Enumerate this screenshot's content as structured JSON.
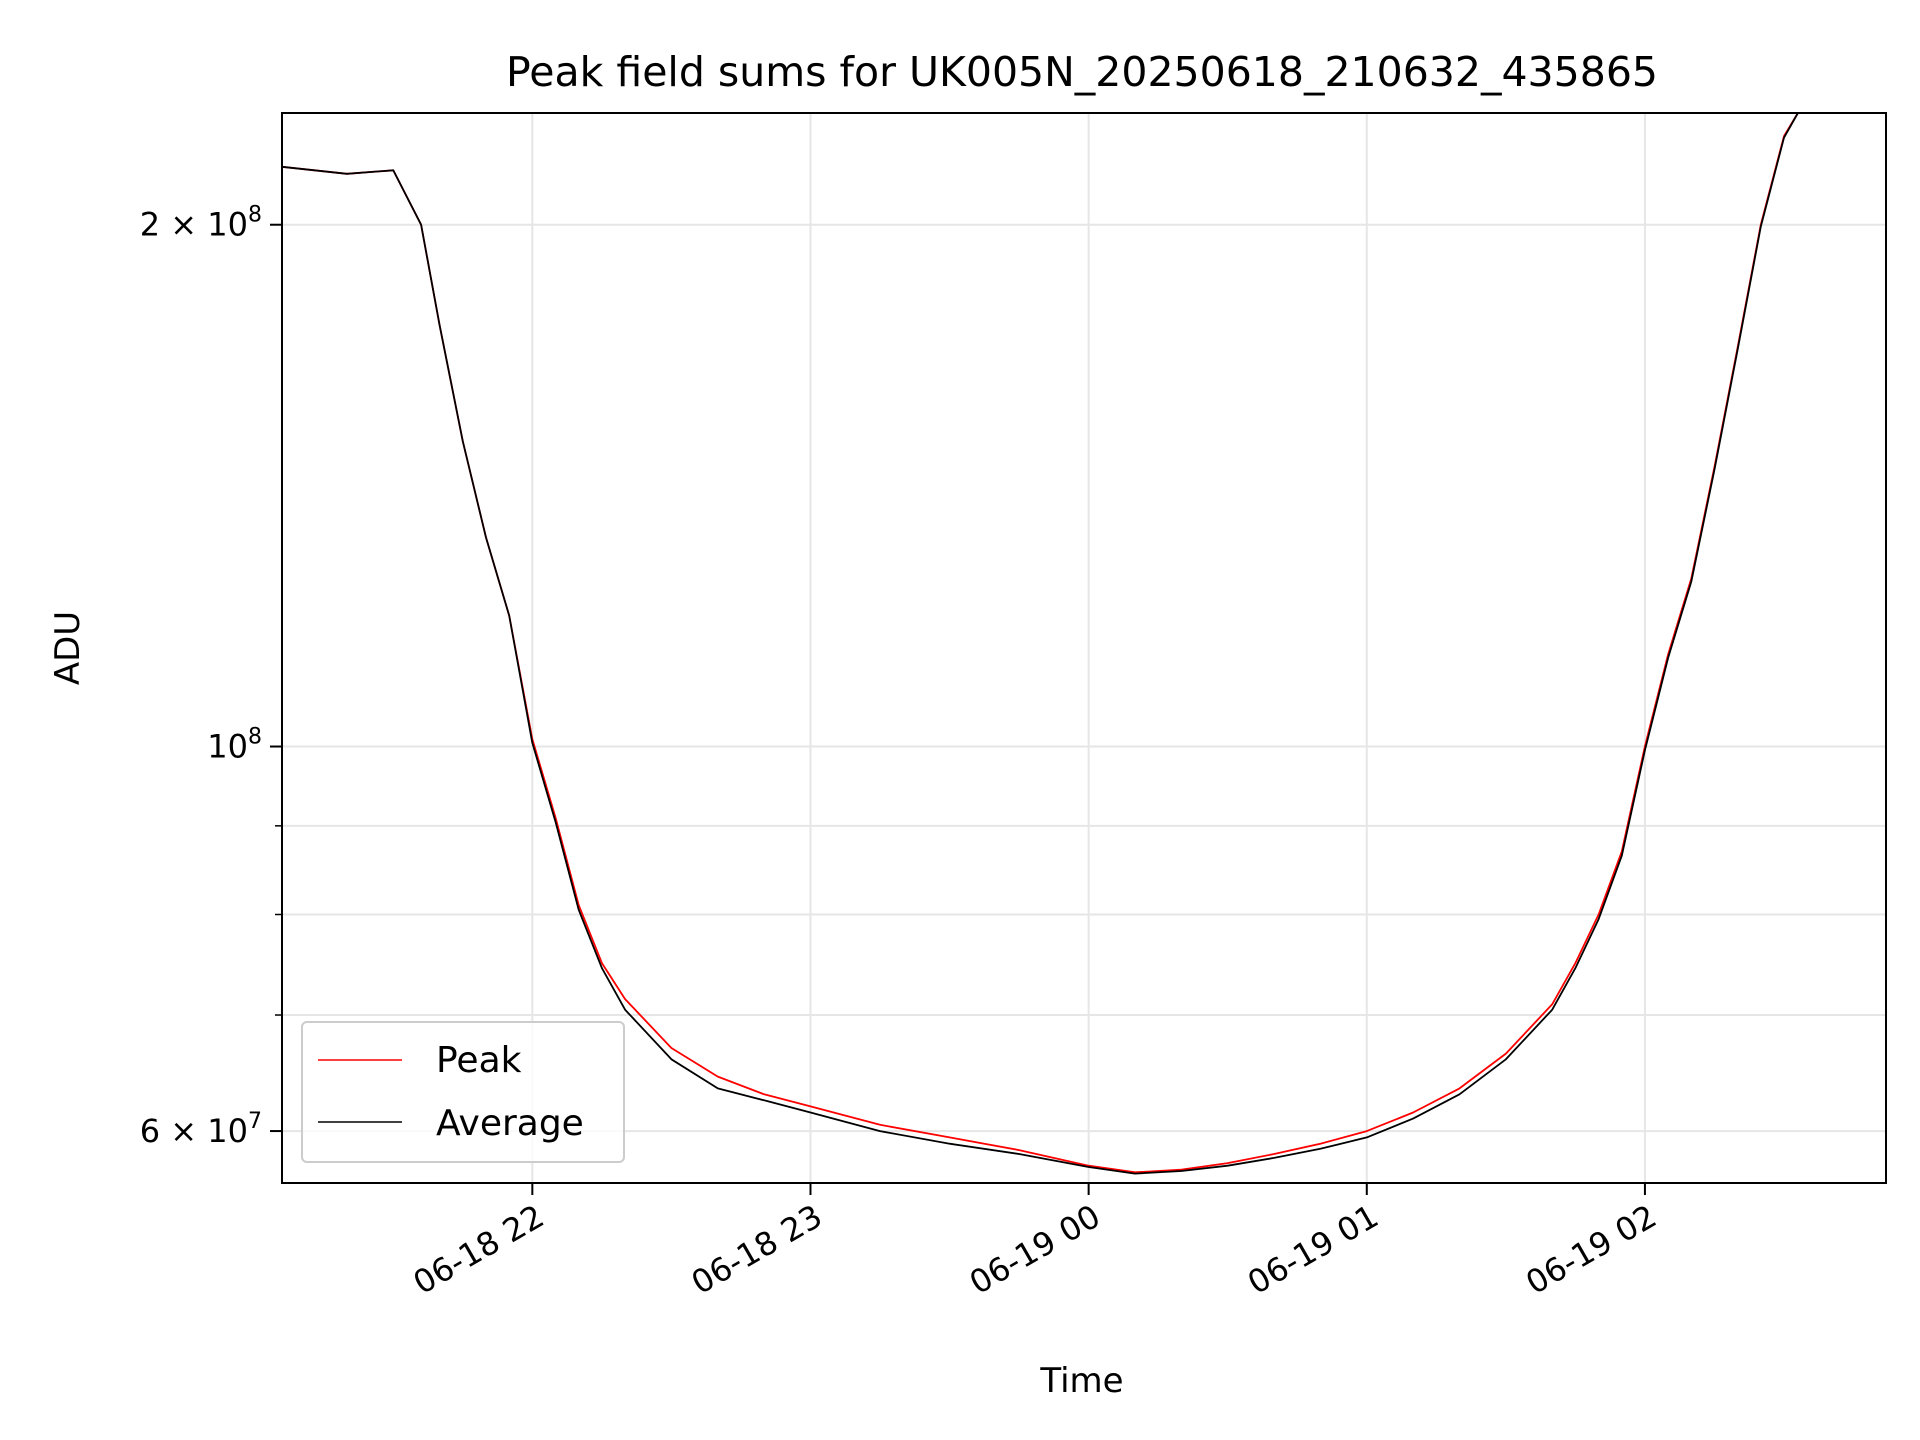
{
  "chart_data": {
    "type": "line",
    "title": "Peak field sums for UK005N_20250618_210632_435865",
    "xlabel": "Time",
    "ylabel": "ADU",
    "y_scale": "log",
    "ylim": [
      56000000,
      232000000
    ],
    "xlim": [
      "2025-06-18 21:06",
      "2025-06-19 02:52"
    ],
    "grid": true,
    "legend_position": "lower-left",
    "x_ticks": [
      {
        "value": "2025-06-18 22:00",
        "label": "06-18 22"
      },
      {
        "value": "2025-06-18 23:00",
        "label": "06-18 23"
      },
      {
        "value": "2025-06-19 00:00",
        "label": "06-19 00"
      },
      {
        "value": "2025-06-19 01:00",
        "label": "06-19 01"
      },
      {
        "value": "2025-06-19 02:00",
        "label": "06-19 02"
      }
    ],
    "y_ticks": [
      {
        "value": 60000000,
        "base": "6 × 10",
        "exp": "7"
      },
      {
        "value": 100000000,
        "base": "10",
        "exp": "8"
      },
      {
        "value": 200000000,
        "base": "2 × 10",
        "exp": "8"
      }
    ],
    "y_minor_ticks": [
      70000000,
      80000000,
      90000000
    ],
    "series": [
      {
        "name": "Peak",
        "color": "#ff0000",
        "x": [
          "2025-06-18 21:06",
          "2025-06-18 21:20",
          "2025-06-18 21:30",
          "2025-06-18 21:36",
          "2025-06-18 21:40",
          "2025-06-18 21:45",
          "2025-06-18 21:50",
          "2025-06-18 21:55",
          "2025-06-18 22:00",
          "2025-06-18 22:05",
          "2025-06-18 22:10",
          "2025-06-18 22:15",
          "2025-06-18 22:20",
          "2025-06-18 22:30",
          "2025-06-18 22:40",
          "2025-06-18 22:50",
          "2025-06-18 23:00",
          "2025-06-18 23:15",
          "2025-06-18 23:30",
          "2025-06-18 23:45",
          "2025-06-19 00:00",
          "2025-06-19 00:10",
          "2025-06-19 00:20",
          "2025-06-19 00:30",
          "2025-06-19 00:40",
          "2025-06-19 00:50",
          "2025-06-19 01:00",
          "2025-06-19 01:10",
          "2025-06-19 01:20",
          "2025-06-19 01:30",
          "2025-06-19 01:40",
          "2025-06-19 01:45",
          "2025-06-19 01:50",
          "2025-06-19 01:55",
          "2025-06-19 02:00",
          "2025-06-19 02:05",
          "2025-06-19 02:10",
          "2025-06-19 02:15",
          "2025-06-19 02:20",
          "2025-06-19 02:25",
          "2025-06-19 02:30",
          "2025-06-19 02:33",
          "2025-06-19 02:52"
        ],
        "values": [
          216000000,
          214000000,
          215000000,
          200000000,
          175000000,
          150000000,
          132000000,
          119000000,
          101000000,
          91000000,
          81000000,
          75000000,
          71500000,
          67000000,
          64500000,
          63000000,
          62000000,
          60500000,
          59500000,
          58500000,
          57300000,
          56800000,
          57000000,
          57500000,
          58200000,
          59000000,
          60000000,
          61500000,
          63500000,
          66500000,
          71000000,
          75000000,
          80000000,
          87000000,
          100000000,
          113000000,
          125000000,
          145000000,
          170000000,
          200000000,
          225000000,
          232000000,
          232000000
        ]
      },
      {
        "name": "Average",
        "color": "#000000",
        "x": [
          "2025-06-18 21:06",
          "2025-06-18 21:20",
          "2025-06-18 21:30",
          "2025-06-18 21:36",
          "2025-06-18 21:40",
          "2025-06-18 21:45",
          "2025-06-18 21:50",
          "2025-06-18 21:55",
          "2025-06-18 22:00",
          "2025-06-18 22:05",
          "2025-06-18 22:10",
          "2025-06-18 22:15",
          "2025-06-18 22:20",
          "2025-06-18 22:30",
          "2025-06-18 22:40",
          "2025-06-18 22:50",
          "2025-06-18 23:00",
          "2025-06-18 23:15",
          "2025-06-18 23:30",
          "2025-06-18 23:45",
          "2025-06-19 00:00",
          "2025-06-19 00:10",
          "2025-06-19 00:20",
          "2025-06-19 00:30",
          "2025-06-19 00:40",
          "2025-06-19 00:50",
          "2025-06-19 01:00",
          "2025-06-19 01:10",
          "2025-06-19 01:20",
          "2025-06-19 01:30",
          "2025-06-19 01:40",
          "2025-06-19 01:45",
          "2025-06-19 01:50",
          "2025-06-19 01:55",
          "2025-06-19 02:00",
          "2025-06-19 02:05",
          "2025-06-19 02:10",
          "2025-06-19 02:15",
          "2025-06-19 02:20",
          "2025-06-19 02:25",
          "2025-06-19 02:30",
          "2025-06-19 02:33",
          "2025-06-19 02:52"
        ],
        "values": [
          216000000,
          214000000,
          215000000,
          200000000,
          175000000,
          150000000,
          132000000,
          119000000,
          100500000,
          90500000,
          80500000,
          74500000,
          70500000,
          66000000,
          63500000,
          62500000,
          61500000,
          60000000,
          59000000,
          58200000,
          57200000,
          56700000,
          56900000,
          57300000,
          57900000,
          58600000,
          59500000,
          61000000,
          63000000,
          66000000,
          70500000,
          74500000,
          79500000,
          86500000,
          99500000,
          112500000,
          124500000,
          144500000,
          169500000,
          199500000,
          224500000,
          232000000,
          232000000
        ]
      }
    ]
  }
}
